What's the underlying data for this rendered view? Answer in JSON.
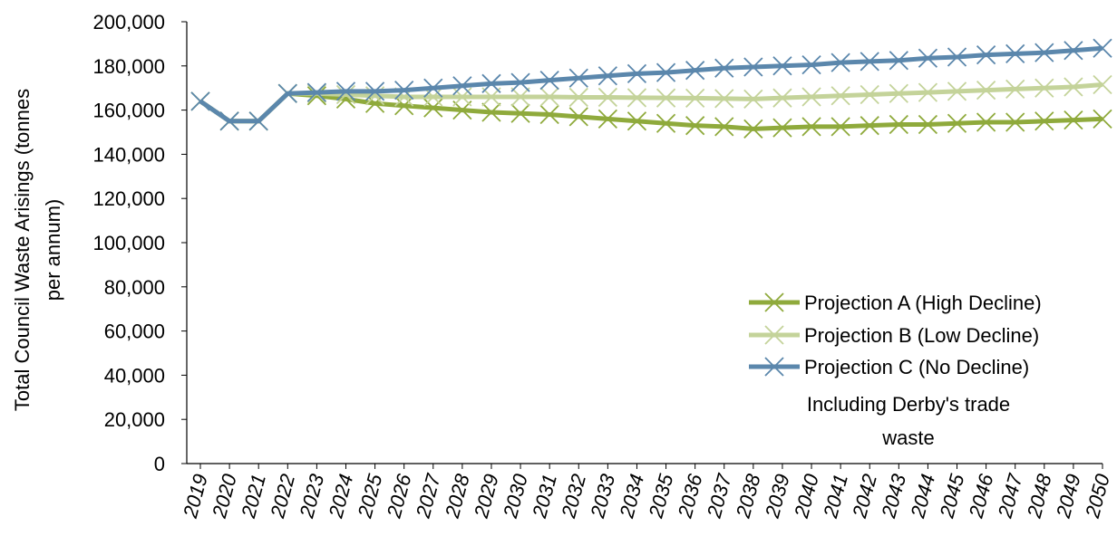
{
  "chart_data": {
    "type": "line",
    "title": "",
    "xlabel": "",
    "ylabel": "Total Council Waste Arisings (tonnes per annum)",
    "ylabel_lines": [
      "Total Council Waste Arisings (tonnes",
      "per annum)"
    ],
    "ylim": [
      0,
      200000
    ],
    "yticks": [
      0,
      20000,
      40000,
      60000,
      80000,
      100000,
      120000,
      140000,
      160000,
      180000,
      200000
    ],
    "ytick_labels": [
      "0",
      "20,000",
      "40,000",
      "60,000",
      "80,000",
      "100,000",
      "120,000",
      "140,000",
      "160,000",
      "180,000",
      "200,000"
    ],
    "grid": false,
    "legend_position": "lower-right",
    "x": [
      "2019",
      "2020",
      "2021",
      "2022",
      "2023",
      "2024",
      "2025",
      "2026",
      "2027",
      "2028",
      "2029",
      "2030",
      "2031",
      "2032",
      "2033",
      "2034",
      "2035",
      "2036",
      "2037",
      "2038",
      "2039",
      "2040",
      "2041",
      "2042",
      "2043",
      "2044",
      "2045",
      "2046",
      "2047",
      "2048",
      "2049",
      "2050"
    ],
    "series": [
      {
        "name": "Projection A (High Decline)",
        "color": "#8faa3c",
        "values": [
          164000,
          155000,
          155000,
          167500,
          166500,
          165000,
          163000,
          162000,
          161000,
          160000,
          159000,
          158500,
          158000,
          157000,
          156000,
          155000,
          154000,
          153000,
          152500,
          151500,
          152000,
          152500,
          152500,
          153000,
          153500,
          153500,
          154000,
          154500,
          154500,
          155000,
          155500,
          156000
        ]
      },
      {
        "name": "Projection B (Low Decline)",
        "color": "#c4d39a",
        "values": [
          164000,
          155000,
          155000,
          167500,
          167500,
          167000,
          166500,
          166000,
          166000,
          166000,
          166000,
          166000,
          166000,
          165800,
          165800,
          165600,
          165500,
          165400,
          165200,
          165000,
          165500,
          166000,
          166500,
          167000,
          167500,
          168000,
          168500,
          169000,
          169500,
          170000,
          170500,
          171500
        ]
      },
      {
        "name": "Projection C (No Decline)",
        "color": "#5b87ac",
        "values": [
          164000,
          155000,
          155000,
          167500,
          168000,
          168500,
          168500,
          169000,
          170000,
          171000,
          172000,
          172500,
          173500,
          174500,
          175500,
          176500,
          177000,
          178000,
          179000,
          179500,
          180000,
          180500,
          181500,
          182000,
          182500,
          183500,
          184000,
          185000,
          185500,
          186000,
          187000,
          188000
        ]
      }
    ],
    "annotation_lines": [
      "Including Derby's trade",
      "waste"
    ]
  }
}
